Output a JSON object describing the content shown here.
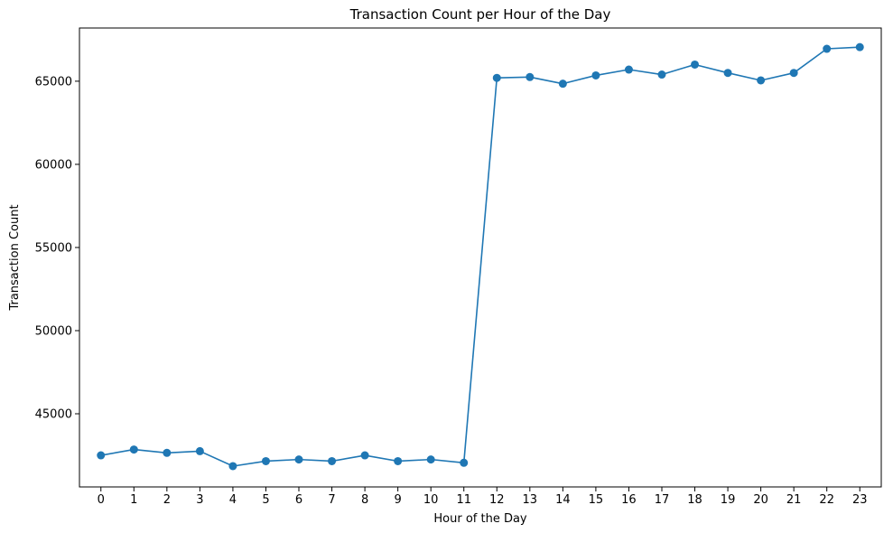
{
  "chart_data": {
    "type": "line",
    "title": "Transaction Count per Hour of the Day",
    "xlabel": "Hour of the Day",
    "ylabel": "Transaction Count",
    "x": [
      0,
      1,
      2,
      3,
      4,
      5,
      6,
      7,
      8,
      9,
      10,
      11,
      12,
      13,
      14,
      15,
      16,
      17,
      18,
      19,
      20,
      21,
      22,
      23
    ],
    "x_tick_labels": [
      "0",
      "1",
      "2",
      "3",
      "4",
      "5",
      "6",
      "7",
      "8",
      "9",
      "10",
      "11",
      "12",
      "13",
      "14",
      "15",
      "16",
      "17",
      "18",
      "19",
      "20",
      "21",
      "22",
      "23"
    ],
    "y_ticks": [
      45000,
      50000,
      55000,
      60000,
      65000
    ],
    "y_tick_labels": [
      "45000",
      "50000",
      "55000",
      "60000",
      "65000"
    ],
    "xlim": [
      -0.65,
      23.65
    ],
    "ylim": [
      40600,
      68200
    ],
    "grid": false,
    "series": [
      {
        "color": "#1f77b4",
        "marker": "circle",
        "values": [
          42500,
          42850,
          42650,
          42750,
          41850,
          42150,
          42250,
          42150,
          42500,
          42150,
          42250,
          42050,
          65200,
          65250,
          64850,
          65350,
          65700,
          65400,
          66000,
          65500,
          65050,
          65500,
          66950,
          67050
        ]
      }
    ]
  }
}
